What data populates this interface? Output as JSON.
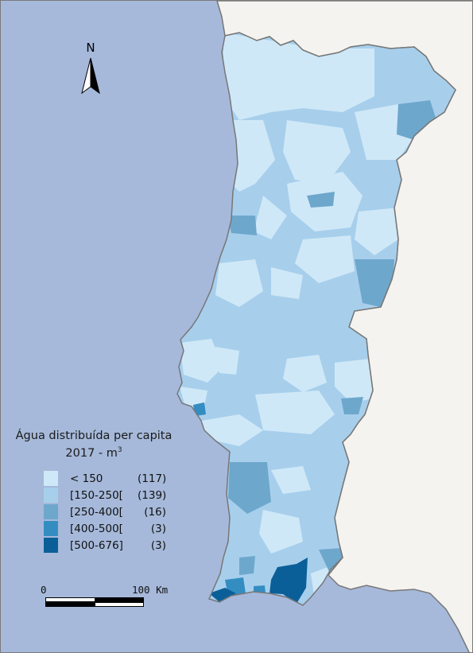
{
  "map": {
    "north_label": "N",
    "legend": {
      "title_line1": "Água distribuída per capita",
      "title_line2": "2017 - m",
      "title_unit_sup": "3",
      "classes": [
        {
          "label": "< 150",
          "count": "(117)",
          "color": "#cfe8f7"
        },
        {
          "label": "[150-250[",
          "count": "(139)",
          "color": "#a7cfec"
        },
        {
          "label": "[250-400[",
          "count": "(16)",
          "color": "#6ea7cc"
        },
        {
          "label": "[400-500[",
          "count": "(3)",
          "color": "#348dc1"
        },
        {
          "label": "[500-676]",
          "count": "(3)",
          "color": "#0b5f99"
        }
      ]
    },
    "scale": {
      "start_label": "0",
      "end_label": "100 Km"
    },
    "colors": {
      "sea": "#a6b9da",
      "spain": "#f4f3ef",
      "border": "#777777"
    }
  }
}
